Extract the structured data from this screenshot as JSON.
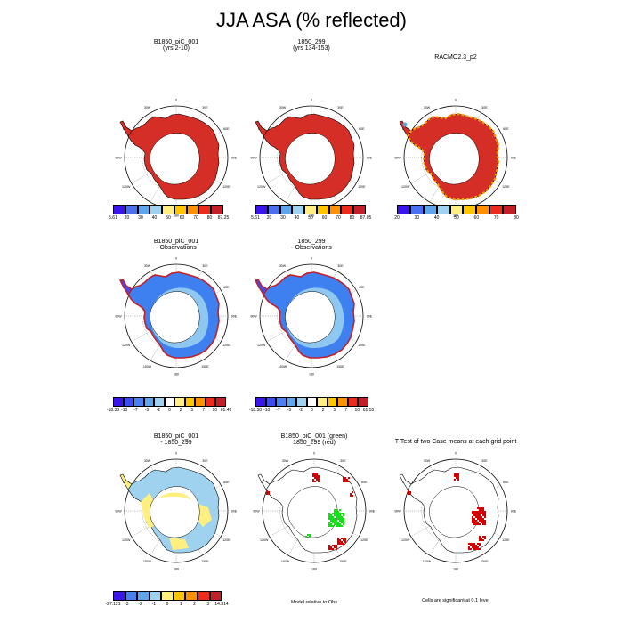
{
  "title": "JJA ASA (% reflected)",
  "lon_labels": [
    "0",
    "30E",
    "60E",
    "90E",
    "120E",
    "150E",
    "180",
    "150W",
    "120W",
    "90W",
    "60W",
    "30W"
  ],
  "panels": [
    {
      "id": "p1",
      "title_lines": [
        "B1850_piC_001",
        "(yrs 2-10)"
      ],
      "style": "red"
    },
    {
      "id": "p2",
      "title_lines": [
        "1850_299",
        "(yrs 134-153)"
      ],
      "style": "red"
    },
    {
      "id": "p3",
      "title_lines": [
        "RACMO2.3_p2",
        ""
      ],
      "style": "red-obs"
    },
    {
      "id": "p4",
      "title_lines": [
        "B1850_piC_001",
        "- Observations"
      ],
      "style": "blue"
    },
    {
      "id": "p5",
      "title_lines": [
        "1850_299",
        "- Observations"
      ],
      "style": "blue"
    },
    {
      "id": "p6",
      "title_lines": [
        "B1850_piC_001",
        "- 1850_299"
      ],
      "style": "diff"
    },
    {
      "id": "p7",
      "title_lines": [
        "B1850_piC_001 (green)",
        "1850_299 (red)"
      ],
      "style": "green-red"
    },
    {
      "id": "p8",
      "title_lines": [
        "T-Test of two Case means at each grid point",
        ""
      ],
      "style": "ttest"
    }
  ],
  "colorbars": {
    "abs1": [
      "5.61",
      "20",
      "30",
      "40",
      "50",
      "60",
      "70",
      "80",
      "87.25"
    ],
    "abs2": [
      "5.61",
      "20",
      "30",
      "40",
      "50",
      "60",
      "70",
      "80",
      "87.05"
    ],
    "abs3": [
      "20",
      "30",
      "40",
      "50",
      "60",
      "70",
      "80"
    ],
    "anom1": [
      "-18.38",
      "-10",
      "-7",
      "-5",
      "-2",
      "0",
      "2",
      "5",
      "7",
      "10",
      "61.49"
    ],
    "anom2": [
      "-18.58",
      "-10",
      "-7",
      "-5",
      "-2",
      "0",
      "2",
      "5",
      "7",
      "10",
      "61.55"
    ],
    "diff": [
      "-27.121",
      "-3",
      "-2",
      "-1",
      "0",
      "1",
      "2",
      "3",
      "14.314"
    ]
  },
  "notes": {
    "model_obs": "Model relative to Obs",
    "significance": "Cells are significant at 0.1 level"
  },
  "colors": {
    "abs": [
      "#3a16ec",
      "#4a70f0",
      "#5fa5ee",
      "#9fd2ee",
      "#ffee80",
      "#ffc600",
      "#ff9000",
      "#ee2a1c",
      "#c21f28"
    ],
    "anom": [
      "#3a16ec",
      "#3f4cef",
      "#4a80f0",
      "#5fa5ee",
      "#9fd2ee",
      "#ffffff",
      "#ffee80",
      "#ffc600",
      "#ff9000",
      "#ee2a1c",
      "#c21f28"
    ],
    "diff": [
      "#3a16ec",
      "#4a80f0",
      "#5fa5ee",
      "#9fd2ee",
      "#ffee80",
      "#ffc600",
      "#ff9000",
      "#ee2a1c",
      "#c21f28"
    ]
  }
}
